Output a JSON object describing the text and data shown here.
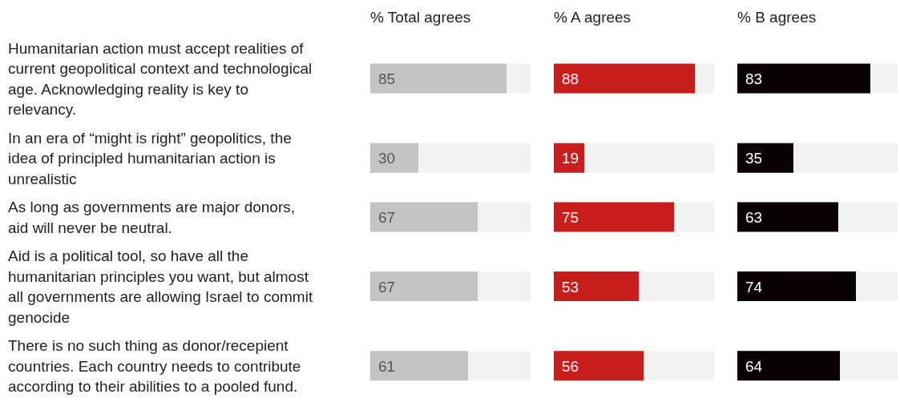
{
  "chart_data": [
    {
      "type": "bar",
      "orientation": "horizontal",
      "title": "% Total agrees",
      "categories": [
        "Humanitarian action must accept realities of current geopolitical context and technological age. Acknowledging reality is key to relevancy.",
        "In an era of “might is right” geopolitics, the idea of principled humanitarian action is unrealistic",
        "As long as governments are major donors, aid will never be neutral.",
        "Aid is a political tool, so have all the humanitarian principles you want, but almost all governments are allowing Israel to commit genocide",
        "There is no such thing as donor/recepient countries. Each country needs to contribute according to their abilities to a pooled fund."
      ],
      "values": [
        85,
        30,
        67,
        67,
        61
      ],
      "color": "#c4c4c4",
      "xlim": [
        0,
        100
      ],
      "data_labels": true,
      "tick_labels": "y"
    },
    {
      "type": "bar",
      "orientation": "horizontal",
      "title": "% A agrees",
      "categories": [
        "Humanitarian action must accept realities of current geopolitical context and technological age. Acknowledging reality is key to relevancy.",
        "In an era of “might is right” geopolitics, the idea of principled humanitarian action is unrealistic",
        "As long as governments are major donors, aid will never be neutral.",
        "Aid is a political tool, so have all the humanitarian principles you want, but almost all governments are allowing Israel to commit genocide",
        "There is no such thing as donor/recepient countries. Each country needs to contribute according to their abilities to a pooled fund."
      ],
      "values": [
        88,
        19,
        75,
        53,
        56
      ],
      "color": "#c81e1e",
      "xlim": [
        0,
        100
      ],
      "data_labels": true,
      "tick_labels": false
    },
    {
      "type": "bar",
      "orientation": "horizontal",
      "title": "% B agrees",
      "categories": [
        "Humanitarian action must accept realities of current geopolitical context and technological age. Acknowledging reality is key to relevancy.",
        "In an era of “might is right” geopolitics, the idea of principled humanitarian action is unrealistic",
        "As long as governments are major donors, aid will never be neutral.",
        "Aid is a political tool, so have all the humanitarian principles you want, but almost all governments are allowing Israel to commit genocide",
        "There is no such thing as donor/recepient countries. Each country needs to contribute according to their abilities to a pooled fund."
      ],
      "values": [
        83,
        35,
        63,
        74,
        64
      ],
      "color": "#0a0203",
      "xlim": [
        0,
        100
      ],
      "data_labels": true,
      "tick_labels": false
    }
  ]
}
